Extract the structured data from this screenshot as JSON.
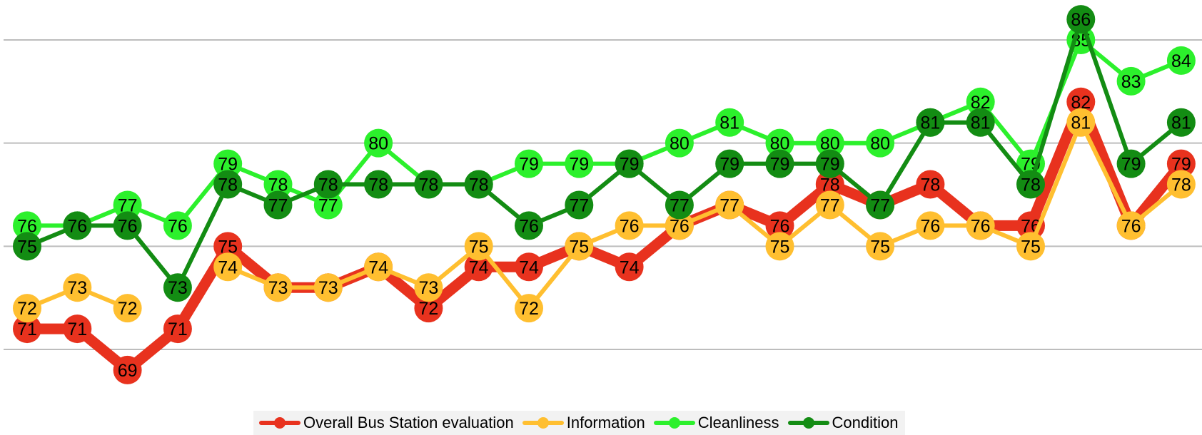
{
  "chart_data": {
    "type": "line",
    "title": "",
    "xlabel": "",
    "ylabel": "",
    "ylim": [
      67,
      87
    ],
    "gridlines": [
      70,
      75,
      80,
      85
    ],
    "grid": true,
    "legend_position": "bottom",
    "x": [
      1,
      2,
      3,
      4,
      5,
      6,
      7,
      8,
      9,
      10,
      11,
      12,
      13,
      14,
      15,
      16,
      17,
      18,
      19,
      20,
      21,
      22,
      23,
      24
    ],
    "series": [
      {
        "name": "Overall Bus Station evaluation",
        "color": "#e8321e",
        "line_width": 15,
        "values": [
          71,
          71,
          69,
          71,
          75,
          73,
          73,
          74,
          72,
          74,
          74,
          75,
          74,
          76,
          77,
          76,
          78,
          77,
          78,
          76,
          76,
          82,
          76,
          79
        ]
      },
      {
        "name": "Information",
        "color": "#ffbf30",
        "line_width": 6,
        "values": [
          72,
          73,
          72,
          null,
          74,
          73,
          73,
          74,
          73,
          75,
          72,
          75,
          76,
          76,
          77,
          75,
          77,
          75,
          76,
          76,
          75,
          81,
          76,
          78
        ]
      },
      {
        "name": "Cleanliness",
        "color": "#2cf02c",
        "line_width": 6,
        "values": [
          76,
          76,
          77,
          76,
          79,
          78,
          77,
          80,
          78,
          78,
          79,
          79,
          79,
          80,
          81,
          80,
          80,
          80,
          81,
          82,
          79,
          85,
          83,
          84
        ]
      },
      {
        "name": "Condition",
        "color": "#138c13",
        "line_width": 6,
        "values": [
          75,
          76,
          76,
          73,
          78,
          77,
          78,
          78,
          78,
          78,
          76,
          77,
          79,
          77,
          79,
          79,
          79,
          77,
          81,
          81,
          78,
          86,
          79,
          81
        ]
      }
    ]
  }
}
